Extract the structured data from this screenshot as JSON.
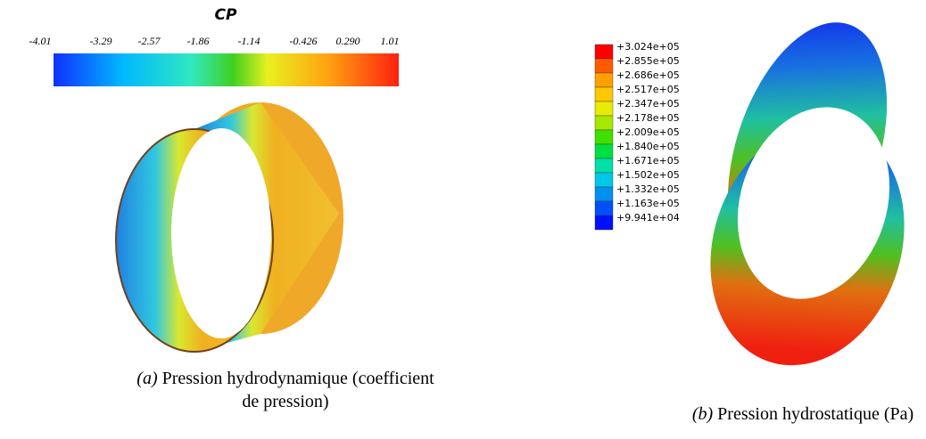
{
  "panel_a": {
    "colorbar_title": "CP",
    "colorbar_ticks": [
      "-4.01",
      "-3.29",
      "-2.57",
      "-1.86",
      "-1.14",
      "-0.426",
      "0.290",
      "1.01"
    ],
    "caption_label": "(a)",
    "caption_text": "Pression hydrodynamique (coefficient de pression)"
  },
  "panel_b": {
    "legend_labels": [
      "+3.024e+05",
      "+2.855e+05",
      "+2.686e+05",
      "+2.517e+05",
      "+2.347e+05",
      "+2.178e+05",
      "+2.009e+05",
      "+1.840e+05",
      "+1.671e+05",
      "+1.502e+05",
      "+1.332e+05",
      "+1.163e+05",
      "+9.941e+04"
    ],
    "caption_label": "(b)",
    "caption_text": "Pression hydrostatique (Pa)"
  }
}
